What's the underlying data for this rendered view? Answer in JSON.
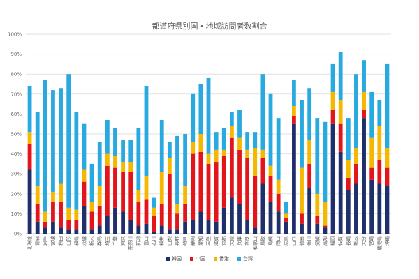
{
  "chart_data": {
    "type": "bar",
    "stacked": true,
    "title": "都道府県別国・地域訪問者数割合",
    "ylim": [
      0,
      100
    ],
    "y_ticks": [
      "0%",
      "10%",
      "20%",
      "30%",
      "40%",
      "50%",
      "60%",
      "70%",
      "80%",
      "90%",
      "100%"
    ],
    "grid": true,
    "legend_position": "bottom",
    "categories": [
      "北海道",
      "青森",
      "岩手",
      "宮城",
      "秋田",
      "山形",
      "福島",
      "茨城",
      "栃木",
      "群馬",
      "埼玉",
      "千葉",
      "東京",
      "神奈川",
      "新潟",
      "富山",
      "石川",
      "福井",
      "山梨",
      "長野",
      "岐阜",
      "静岡",
      "愛知",
      "三重",
      "滋賀",
      "京都",
      "大阪",
      "兵庫",
      "奈良",
      "和歌山",
      "鳥取",
      "島根",
      "岡山",
      "広島",
      "山口",
      "徳島",
      "香川",
      "愛媛",
      "高知",
      "福岡",
      "佐賀",
      "長崎",
      "熊本",
      "大分",
      "宮崎",
      "鹿児島",
      "沖縄"
    ],
    "series": [
      {
        "name": "韓国",
        "color": "#1f2f6b",
        "values": [
          32,
          6,
          3,
          6,
          3,
          2,
          2,
          14,
          2,
          4,
          9,
          13,
          11,
          7,
          4,
          5,
          1,
          4,
          2,
          2,
          6,
          7,
          11,
          7,
          6,
          13,
          18,
          15,
          7,
          3,
          25,
          16,
          11,
          6,
          55,
          5,
          23,
          5,
          3,
          55,
          41,
          22,
          25,
          58,
          27,
          25,
          24
        ]
      },
      {
        "name": "中国",
        "color": "#e3141a",
        "values": [
          13,
          9,
          3,
          10,
          13,
          5,
          5,
          12,
          9,
          10,
          25,
          20,
          20,
          24,
          12,
          12,
          8,
          11,
          28,
          8,
          9,
          33,
          30,
          28,
          30,
          26,
          30,
          27,
          31,
          26,
          13,
          13,
          9,
          2,
          4,
          5,
          12,
          4,
          1,
          7,
          14,
          6,
          10,
          4,
          6,
          12,
          9
        ]
      },
      {
        "name": "香港",
        "color": "#f5b700",
        "values": [
          6,
          9,
          5,
          5,
          9,
          6,
          5,
          6,
          5,
          10,
          6,
          6,
          5,
          5,
          6,
          12,
          4,
          16,
          8,
          5,
          9,
          6,
          9,
          5,
          6,
          3,
          6,
          6,
          4,
          14,
          4,
          5,
          7,
          2,
          5,
          23,
          12,
          11,
          12,
          9,
          12,
          9,
          8,
          9,
          15,
          17,
          10
        ]
      },
      {
        "name": "台湾",
        "color": "#28a9df",
        "values": [
          23,
          37,
          66,
          51,
          48,
          67,
          49,
          23,
          19,
          22,
          17,
          14,
          11,
          11,
          31,
          45,
          5,
          26,
          8,
          34,
          26,
          24,
          25,
          38,
          9,
          11,
          7,
          14,
          9,
          8,
          38,
          36,
          31,
          6,
          13,
          34,
          26,
          38,
          40,
          14,
          24,
          21,
          37,
          16,
          23,
          13,
          42
        ]
      }
    ]
  }
}
